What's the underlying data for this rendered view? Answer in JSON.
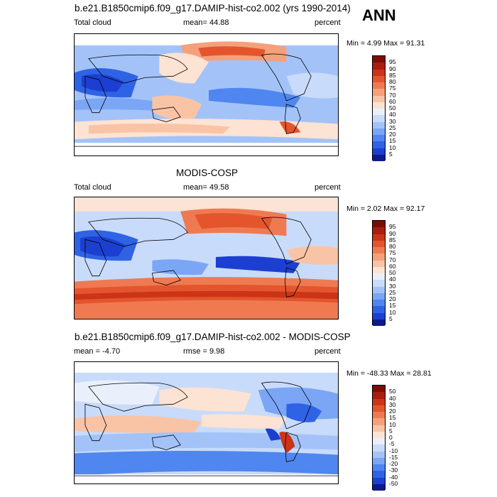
{
  "season": "ANN",
  "panels": [
    {
      "id": "model",
      "title": "b.e21.B1850cmip6.f09_g17.DAMIP-hist-co2.002 (yrs 1990-2014)",
      "left_label": "Total cloud",
      "center_label": "mean=  44.88",
      "right_label": "percent",
      "minmax": "Min =   4.99 Max =  91.31",
      "levels": [
        "95",
        "90",
        "85",
        "80",
        "75",
        "70",
        "60",
        "50",
        "40",
        "30",
        "25",
        "20",
        "15",
        "10",
        "5"
      ]
    },
    {
      "id": "obs",
      "title": "MODIS-COSP",
      "left_label": "Total cloud",
      "center_label": "mean=  49.58",
      "right_label": "percent",
      "minmax": "Min =   2.02 Max =  92.17",
      "levels": [
        "95",
        "90",
        "85",
        "80",
        "75",
        "70",
        "60",
        "50",
        "40",
        "30",
        "25",
        "20",
        "15",
        "10",
        "5"
      ]
    },
    {
      "id": "diff",
      "title": "b.e21.B1850cmip6.f09_g17.DAMIP-hist-co2.002 - MODIS-COSP",
      "left_label": "mean =  -4.70",
      "center_label": "rmse =    9.98",
      "right_label": "percent",
      "minmax": "Min = -48.33 Max =  28.81",
      "levels": [
        "50",
        "40",
        "30",
        "20",
        "15",
        "10",
        "5",
        "0",
        "-5",
        "-10",
        "-15",
        "-20",
        "-30",
        "-40",
        "-50"
      ]
    }
  ],
  "colors": {
    "abs_scale": [
      "#0d1a8c",
      "#1c3fd1",
      "#2f63e6",
      "#4f86f0",
      "#7aa6f5",
      "#a3c3f8",
      "#c9dbfa",
      "#eaf0fb",
      "#fde3d3",
      "#f9c4a6",
      "#f5a07a",
      "#ef7a52",
      "#e4552d",
      "#cc3417",
      "#a81d0e",
      "#7c0d05"
    ],
    "diff_scale": [
      "#0d1a8c",
      "#1c3fd1",
      "#2f63e6",
      "#4f86f0",
      "#7aa6f5",
      "#a3c3f8",
      "#c9dbfa",
      "#eaf0fb",
      "#fde3d3",
      "#f9c4a6",
      "#f5a07a",
      "#ef7a52",
      "#e4552d",
      "#cc3417",
      "#a81d0e",
      "#7c0d05"
    ],
    "land": "#ffffff",
    "coast": "#000000"
  }
}
